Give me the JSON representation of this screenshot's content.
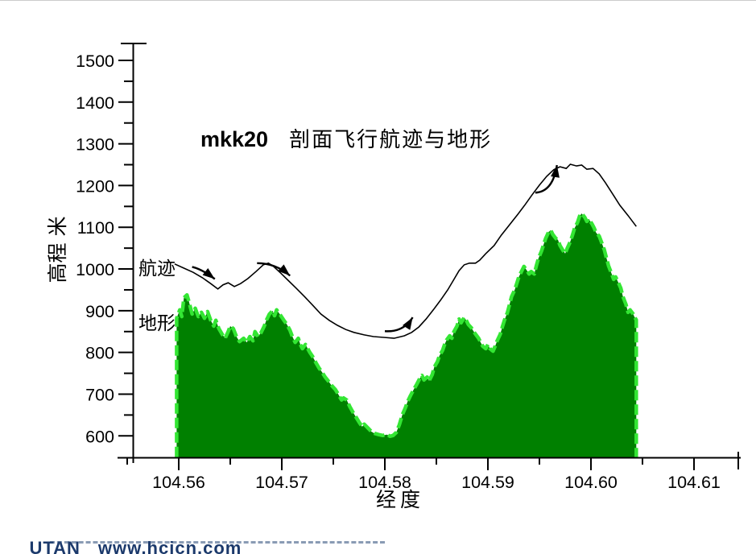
{
  "title": {
    "prefix": "mkk20",
    "text": "剖面飞行航迹与地形"
  },
  "axis_titles": {
    "y": "高程 米",
    "x": "经度"
  },
  "series_labels": {
    "flight": "航迹",
    "terrain": "地形"
  },
  "watermark": {
    "brand": "UTAN",
    "site": "www.hcicn.com"
  },
  "chart_data": {
    "type": "area+line profile",
    "title": "mkk20 剖面飞行航迹与地形",
    "xlabel": "经度",
    "ylabel": "高程 米",
    "grid": false,
    "x_axis": {
      "tick_labels": [
        "104.56",
        "104.57",
        "104.58",
        "104.59",
        "104.60",
        "104.61"
      ],
      "ticks": [
        104.56,
        104.57,
        104.58,
        104.59,
        104.6,
        104.61
      ],
      "minor_ticks": [
        104.555,
        104.565,
        104.575,
        104.585,
        104.595,
        104.605
      ],
      "range": [
        104.5535,
        104.6148
      ]
    },
    "y_axis": {
      "ticks": [
        600,
        700,
        800,
        900,
        1000,
        1100,
        1200,
        1300,
        1400,
        1500
      ],
      "minor_ticks": [
        650,
        750,
        850,
        950,
        1050,
        1150,
        1250,
        1350,
        1450
      ],
      "range": [
        548,
        1545
      ]
    },
    "colors": {
      "terrain_fill": "#008000",
      "terrain_edge": "#33E633",
      "flight_line": "#000000",
      "axis": "#000000",
      "watermark": "#1C3A6C"
    },
    "series": [
      {
        "name": "航迹",
        "kind": "line",
        "points": [
          [
            104.5596,
            1012
          ],
          [
            104.5605,
            1002
          ],
          [
            104.5614,
            992
          ],
          [
            104.5623,
            979
          ],
          [
            104.5631,
            965
          ],
          [
            104.5638,
            952
          ],
          [
            104.5643,
            962
          ],
          [
            104.5648,
            967
          ],
          [
            104.5654,
            958
          ],
          [
            104.566,
            965
          ],
          [
            104.5667,
            977
          ],
          [
            104.5675,
            994
          ],
          [
            104.5682,
            1010
          ],
          [
            104.5687,
            1014
          ],
          [
            104.5692,
            1006
          ],
          [
            104.5699,
            990
          ],
          [
            104.5706,
            973
          ],
          [
            104.5714,
            954
          ],
          [
            104.5722,
            934
          ],
          [
            104.573,
            913
          ],
          [
            104.5738,
            892
          ],
          [
            104.5746,
            877
          ],
          [
            104.5754,
            865
          ],
          [
            104.5762,
            855
          ],
          [
            104.577,
            848
          ],
          [
            104.578,
            842
          ],
          [
            104.5789,
            838
          ],
          [
            104.5799,
            836
          ],
          [
            104.5809,
            834
          ],
          [
            104.5819,
            840
          ],
          [
            104.5826,
            848
          ],
          [
            104.5833,
            861
          ],
          [
            104.584,
            880
          ],
          [
            104.5847,
            902
          ],
          [
            104.5854,
            925
          ],
          [
            104.5861,
            950
          ],
          [
            104.5867,
            975
          ],
          [
            104.5872,
            996
          ],
          [
            104.5877,
            1010
          ],
          [
            104.5882,
            1014
          ],
          [
            104.5888,
            1014
          ],
          [
            104.5892,
            1021
          ],
          [
            104.5898,
            1037
          ],
          [
            104.5906,
            1056
          ],
          [
            104.5913,
            1081
          ],
          [
            104.5921,
            1106
          ],
          [
            104.5929,
            1131
          ],
          [
            104.5936,
            1154
          ],
          [
            104.5943,
            1178
          ],
          [
            104.595,
            1201
          ],
          [
            104.5957,
            1222
          ],
          [
            104.5964,
            1238
          ],
          [
            104.597,
            1245
          ],
          [
            104.5976,
            1241
          ],
          [
            104.598,
            1251
          ],
          [
            104.5986,
            1247
          ],
          [
            104.5991,
            1249
          ],
          [
            104.5996,
            1239
          ],
          [
            104.6002,
            1241
          ],
          [
            104.6008,
            1228
          ],
          [
            104.6014,
            1207
          ],
          [
            104.6021,
            1180
          ],
          [
            104.6028,
            1153
          ],
          [
            104.6036,
            1128
          ],
          [
            104.6044,
            1102
          ]
        ]
      },
      {
        "name": "地形",
        "kind": "area",
        "baseline": 549,
        "points": [
          [
            104.5598,
            882
          ],
          [
            104.5601,
            902
          ],
          [
            104.5603,
            886
          ],
          [
            104.5605,
            931
          ],
          [
            104.5608,
            938
          ],
          [
            104.561,
            921
          ],
          [
            104.5613,
            892
          ],
          [
            104.5616,
            906
          ],
          [
            104.5619,
            886
          ],
          [
            104.5622,
            896
          ],
          [
            104.5625,
            882
          ],
          [
            104.5628,
            898
          ],
          [
            104.5631,
            877
          ],
          [
            104.5634,
            863
          ],
          [
            104.5636,
            877
          ],
          [
            104.5639,
            857
          ],
          [
            104.5642,
            844
          ],
          [
            104.5645,
            834
          ],
          [
            104.5648,
            850
          ],
          [
            104.565,
            863
          ],
          [
            104.5653,
            857
          ],
          [
            104.5656,
            838
          ],
          [
            104.5659,
            826
          ],
          [
            104.5663,
            834
          ],
          [
            104.5666,
            824
          ],
          [
            104.5669,
            838
          ],
          [
            104.5672,
            828
          ],
          [
            104.5674,
            850
          ],
          [
            104.5677,
            838
          ],
          [
            104.568,
            848
          ],
          [
            104.5683,
            863
          ],
          [
            104.5685,
            877
          ],
          [
            104.5688,
            892
          ],
          [
            104.5691,
            900
          ],
          [
            104.5693,
            888
          ],
          [
            104.5695,
            902
          ],
          [
            104.5698,
            892
          ],
          [
            104.5702,
            877
          ],
          [
            104.5705,
            867
          ],
          [
            104.5708,
            853
          ],
          [
            104.571,
            840
          ],
          [
            104.5713,
            824
          ],
          [
            104.5716,
            834
          ],
          [
            104.5718,
            819
          ],
          [
            104.572,
            809
          ],
          [
            104.5723,
            819
          ],
          [
            104.5727,
            801
          ],
          [
            104.573,
            790
          ],
          [
            104.5733,
            776
          ],
          [
            104.5736,
            763
          ],
          [
            104.5739,
            753
          ],
          [
            104.5742,
            741
          ],
          [
            104.5745,
            732
          ],
          [
            104.5748,
            722
          ],
          [
            104.5752,
            711
          ],
          [
            104.5755,
            699
          ],
          [
            104.5758,
            686
          ],
          [
            104.576,
            691
          ],
          [
            104.5763,
            686
          ],
          [
            104.5766,
            670
          ],
          [
            104.5769,
            657
          ],
          [
            104.5772,
            645
          ],
          [
            104.5775,
            633
          ],
          [
            104.5778,
            622
          ],
          [
            104.578,
            628
          ],
          [
            104.5784,
            618
          ],
          [
            104.5787,
            610
          ],
          [
            104.579,
            606
          ],
          [
            104.5794,
            603
          ],
          [
            104.5798,
            601
          ],
          [
            104.5802,
            603
          ],
          [
            104.5805,
            599
          ],
          [
            104.5808,
            601
          ],
          [
            104.5811,
            608
          ],
          [
            104.5814,
            626
          ],
          [
            104.5817,
            651
          ],
          [
            104.582,
            668
          ],
          [
            104.5822,
            682
          ],
          [
            104.5825,
            697
          ],
          [
            104.5828,
            711
          ],
          [
            104.5831,
            724
          ],
          [
            104.5834,
            738
          ],
          [
            104.5836,
            745
          ],
          [
            104.5838,
            734
          ],
          [
            104.5841,
            741
          ],
          [
            104.5843,
            732
          ],
          [
            104.5846,
            747
          ],
          [
            104.5848,
            765
          ],
          [
            104.5851,
            778
          ],
          [
            104.5853,
            792
          ],
          [
            104.5856,
            805
          ],
          [
            104.5858,
            819
          ],
          [
            104.586,
            830
          ],
          [
            104.5863,
            840
          ],
          [
            104.5865,
            834
          ],
          [
            104.5867,
            850
          ],
          [
            104.587,
            863
          ],
          [
            104.5872,
            880
          ],
          [
            104.5874,
            871
          ],
          [
            104.5877,
            884
          ],
          [
            104.5879,
            877
          ],
          [
            104.5881,
            867
          ],
          [
            104.5884,
            859
          ],
          [
            104.5886,
            851
          ],
          [
            104.5888,
            844
          ],
          [
            104.5891,
            834
          ],
          [
            104.5893,
            824
          ],
          [
            104.5895,
            815
          ],
          [
            104.5898,
            809
          ],
          [
            104.59,
            819
          ],
          [
            104.5902,
            809
          ],
          [
            104.5905,
            803
          ],
          [
            104.5907,
            815
          ],
          [
            104.5909,
            828
          ],
          [
            104.5912,
            844
          ],
          [
            104.5914,
            861
          ],
          [
            104.5916,
            877
          ],
          [
            104.5919,
            896
          ],
          [
            104.5921,
            915
          ],
          [
            104.5923,
            934
          ],
          [
            104.5926,
            950
          ],
          [
            104.5928,
            965
          ],
          [
            104.593,
            981
          ],
          [
            104.5933,
            996
          ],
          [
            104.5935,
            1006
          ],
          [
            104.5938,
            996
          ],
          [
            104.594,
            988
          ],
          [
            104.5942,
            994
          ],
          [
            104.5945,
            988
          ],
          [
            104.5947,
            1008
          ],
          [
            104.5949,
            1025
          ],
          [
            104.5952,
            1043
          ],
          [
            104.5954,
            1058
          ],
          [
            104.5956,
            1073
          ],
          [
            104.5959,
            1089
          ],
          [
            104.5961,
            1093
          ],
          [
            104.5963,
            1083
          ],
          [
            104.5966,
            1073
          ],
          [
            104.5968,
            1070
          ],
          [
            104.597,
            1056
          ],
          [
            104.5973,
            1044
          ],
          [
            104.5975,
            1037
          ],
          [
            104.5977,
            1050
          ],
          [
            104.598,
            1066
          ],
          [
            104.5982,
            1081
          ],
          [
            104.5984,
            1097
          ],
          [
            104.5987,
            1112
          ],
          [
            104.5989,
            1127
          ],
          [
            104.5991,
            1133
          ],
          [
            104.5994,
            1124
          ],
          [
            104.5996,
            1114
          ],
          [
            104.5998,
            1120
          ],
          [
            104.6001,
            1108
          ],
          [
            104.6003,
            1099
          ],
          [
            104.6005,
            1087
          ],
          [
            104.6008,
            1079
          ],
          [
            104.601,
            1066
          ],
          [
            104.6013,
            1046
          ],
          [
            104.6015,
            1027
          ],
          [
            104.6017,
            1008
          ],
          [
            104.602,
            989
          ],
          [
            104.6022,
            975
          ],
          [
            104.6024,
            981
          ],
          [
            104.6027,
            965
          ],
          [
            104.6029,
            954
          ],
          [
            104.6031,
            934
          ],
          [
            104.6034,
            915
          ],
          [
            104.6036,
            896
          ],
          [
            104.6038,
            902
          ],
          [
            104.6041,
            892
          ],
          [
            104.6042,
            886
          ],
          [
            104.6044,
            878
          ]
        ]
      }
    ],
    "arrows": [
      {
        "from": [
          104.5613,
          1005
        ],
        "ctrl": [
          104.5623,
          999
        ],
        "to": [
          104.5635,
          976
        ]
      },
      {
        "from": [
          104.5676,
          1014
        ],
        "ctrl": [
          104.5694,
          1014
        ],
        "to": [
          104.5708,
          984
        ]
      },
      {
        "from": [
          104.58,
          851
        ],
        "ctrl": [
          104.5818,
          848
        ],
        "to": [
          104.5827,
          884
        ]
      },
      {
        "from": [
          104.5946,
          1183
        ],
        "ctrl": [
          104.5963,
          1185
        ],
        "to": [
          104.5967,
          1249
        ]
      }
    ]
  }
}
